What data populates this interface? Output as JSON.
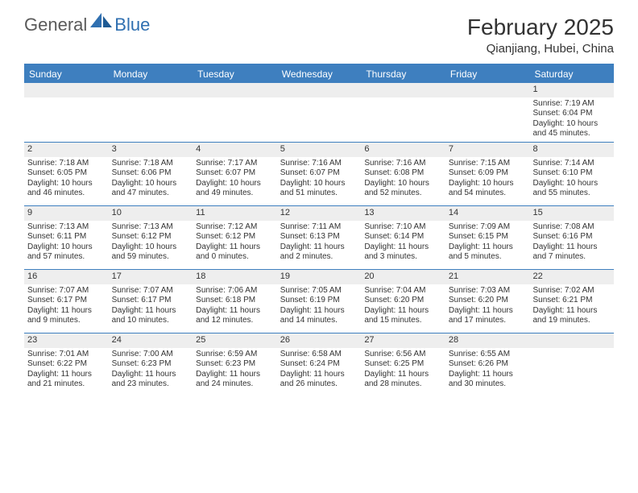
{
  "logo": {
    "text1": "General",
    "text2": "Blue"
  },
  "title": "February 2025",
  "location": "Qianjiang, Hubei, China",
  "colors": {
    "header_bar": "#3e7fbf",
    "daynum_bg": "#eeeeee",
    "text": "#333333",
    "logo_gray": "#5a5a5a",
    "logo_blue": "#2f6fb0",
    "background": "#ffffff"
  },
  "weekdays": [
    "Sunday",
    "Monday",
    "Tuesday",
    "Wednesday",
    "Thursday",
    "Friday",
    "Saturday"
  ],
  "weeks": [
    [
      null,
      null,
      null,
      null,
      null,
      null,
      {
        "n": "1",
        "sr": "7:19 AM",
        "ss": "6:04 PM",
        "dl": "10 hours and 45 minutes."
      }
    ],
    [
      {
        "n": "2",
        "sr": "7:18 AM",
        "ss": "6:05 PM",
        "dl": "10 hours and 46 minutes."
      },
      {
        "n": "3",
        "sr": "7:18 AM",
        "ss": "6:06 PM",
        "dl": "10 hours and 47 minutes."
      },
      {
        "n": "4",
        "sr": "7:17 AM",
        "ss": "6:07 PM",
        "dl": "10 hours and 49 minutes."
      },
      {
        "n": "5",
        "sr": "7:16 AM",
        "ss": "6:07 PM",
        "dl": "10 hours and 51 minutes."
      },
      {
        "n": "6",
        "sr": "7:16 AM",
        "ss": "6:08 PM",
        "dl": "10 hours and 52 minutes."
      },
      {
        "n": "7",
        "sr": "7:15 AM",
        "ss": "6:09 PM",
        "dl": "10 hours and 54 minutes."
      },
      {
        "n": "8",
        "sr": "7:14 AM",
        "ss": "6:10 PM",
        "dl": "10 hours and 55 minutes."
      }
    ],
    [
      {
        "n": "9",
        "sr": "7:13 AM",
        "ss": "6:11 PM",
        "dl": "10 hours and 57 minutes."
      },
      {
        "n": "10",
        "sr": "7:13 AM",
        "ss": "6:12 PM",
        "dl": "10 hours and 59 minutes."
      },
      {
        "n": "11",
        "sr": "7:12 AM",
        "ss": "6:12 PM",
        "dl": "11 hours and 0 minutes."
      },
      {
        "n": "12",
        "sr": "7:11 AM",
        "ss": "6:13 PM",
        "dl": "11 hours and 2 minutes."
      },
      {
        "n": "13",
        "sr": "7:10 AM",
        "ss": "6:14 PM",
        "dl": "11 hours and 3 minutes."
      },
      {
        "n": "14",
        "sr": "7:09 AM",
        "ss": "6:15 PM",
        "dl": "11 hours and 5 minutes."
      },
      {
        "n": "15",
        "sr": "7:08 AM",
        "ss": "6:16 PM",
        "dl": "11 hours and 7 minutes."
      }
    ],
    [
      {
        "n": "16",
        "sr": "7:07 AM",
        "ss": "6:17 PM",
        "dl": "11 hours and 9 minutes."
      },
      {
        "n": "17",
        "sr": "7:07 AM",
        "ss": "6:17 PM",
        "dl": "11 hours and 10 minutes."
      },
      {
        "n": "18",
        "sr": "7:06 AM",
        "ss": "6:18 PM",
        "dl": "11 hours and 12 minutes."
      },
      {
        "n": "19",
        "sr": "7:05 AM",
        "ss": "6:19 PM",
        "dl": "11 hours and 14 minutes."
      },
      {
        "n": "20",
        "sr": "7:04 AM",
        "ss": "6:20 PM",
        "dl": "11 hours and 15 minutes."
      },
      {
        "n": "21",
        "sr": "7:03 AM",
        "ss": "6:20 PM",
        "dl": "11 hours and 17 minutes."
      },
      {
        "n": "22",
        "sr": "7:02 AM",
        "ss": "6:21 PM",
        "dl": "11 hours and 19 minutes."
      }
    ],
    [
      {
        "n": "23",
        "sr": "7:01 AM",
        "ss": "6:22 PM",
        "dl": "11 hours and 21 minutes."
      },
      {
        "n": "24",
        "sr": "7:00 AM",
        "ss": "6:23 PM",
        "dl": "11 hours and 23 minutes."
      },
      {
        "n": "25",
        "sr": "6:59 AM",
        "ss": "6:23 PM",
        "dl": "11 hours and 24 minutes."
      },
      {
        "n": "26",
        "sr": "6:58 AM",
        "ss": "6:24 PM",
        "dl": "11 hours and 26 minutes."
      },
      {
        "n": "27",
        "sr": "6:56 AM",
        "ss": "6:25 PM",
        "dl": "11 hours and 28 minutes."
      },
      {
        "n": "28",
        "sr": "6:55 AM",
        "ss": "6:26 PM",
        "dl": "11 hours and 30 minutes."
      },
      null
    ]
  ],
  "labels": {
    "sunrise": "Sunrise: ",
    "sunset": "Sunset: ",
    "daylight": "Daylight: "
  }
}
